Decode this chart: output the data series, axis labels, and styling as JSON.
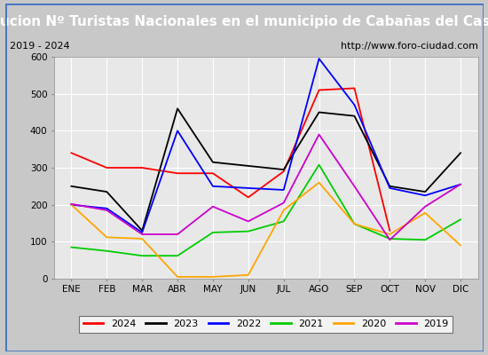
{
  "title": "Evolucion Nº Turistas Nacionales en el municipio de Cabañas del Castillo",
  "subtitle_left": "2019 - 2024",
  "subtitle_right": "http://www.foro-ciudad.com",
  "months": [
    "ENE",
    "FEB",
    "MAR",
    "ABR",
    "MAY",
    "JUN",
    "JUL",
    "AGO",
    "SEP",
    "OCT",
    "NOV",
    "DIC"
  ],
  "ylim": [
    0,
    600
  ],
  "yticks": [
    0,
    100,
    200,
    300,
    400,
    500,
    600
  ],
  "series": {
    "2024": {
      "color": "#ff0000",
      "values": [
        340,
        300,
        300,
        285,
        285,
        220,
        290,
        510,
        515,
        130,
        null,
        null
      ]
    },
    "2023": {
      "color": "#000000",
      "values": [
        250,
        235,
        130,
        460,
        315,
        305,
        295,
        450,
        440,
        250,
        235,
        340
      ]
    },
    "2022": {
      "color": "#0000ff",
      "values": [
        200,
        190,
        125,
        400,
        250,
        245,
        240,
        595,
        470,
        245,
        225,
        255
      ]
    },
    "2021": {
      "color": "#00cc00",
      "values": [
        85,
        75,
        62,
        62,
        125,
        128,
        155,
        308,
        148,
        108,
        105,
        160
      ]
    },
    "2020": {
      "color": "#ffa500",
      "values": [
        200,
        112,
        108,
        5,
        5,
        10,
        185,
        260,
        148,
        120,
        178,
        90
      ]
    },
    "2019": {
      "color": "#cc00cc",
      "values": [
        202,
        185,
        120,
        120,
        195,
        155,
        205,
        390,
        250,
        105,
        195,
        255
      ]
    }
  },
  "title_bg_color": "#4472c4",
  "title_color": "#ffffff",
  "title_fontsize": 11,
  "plot_bg_color": "#e8e8e8",
  "outer_bg_color": "#c8c8c8",
  "border_color": "#4472c4",
  "grid_color": "#ffffff",
  "info_bar_bg": "#f0f0f0"
}
